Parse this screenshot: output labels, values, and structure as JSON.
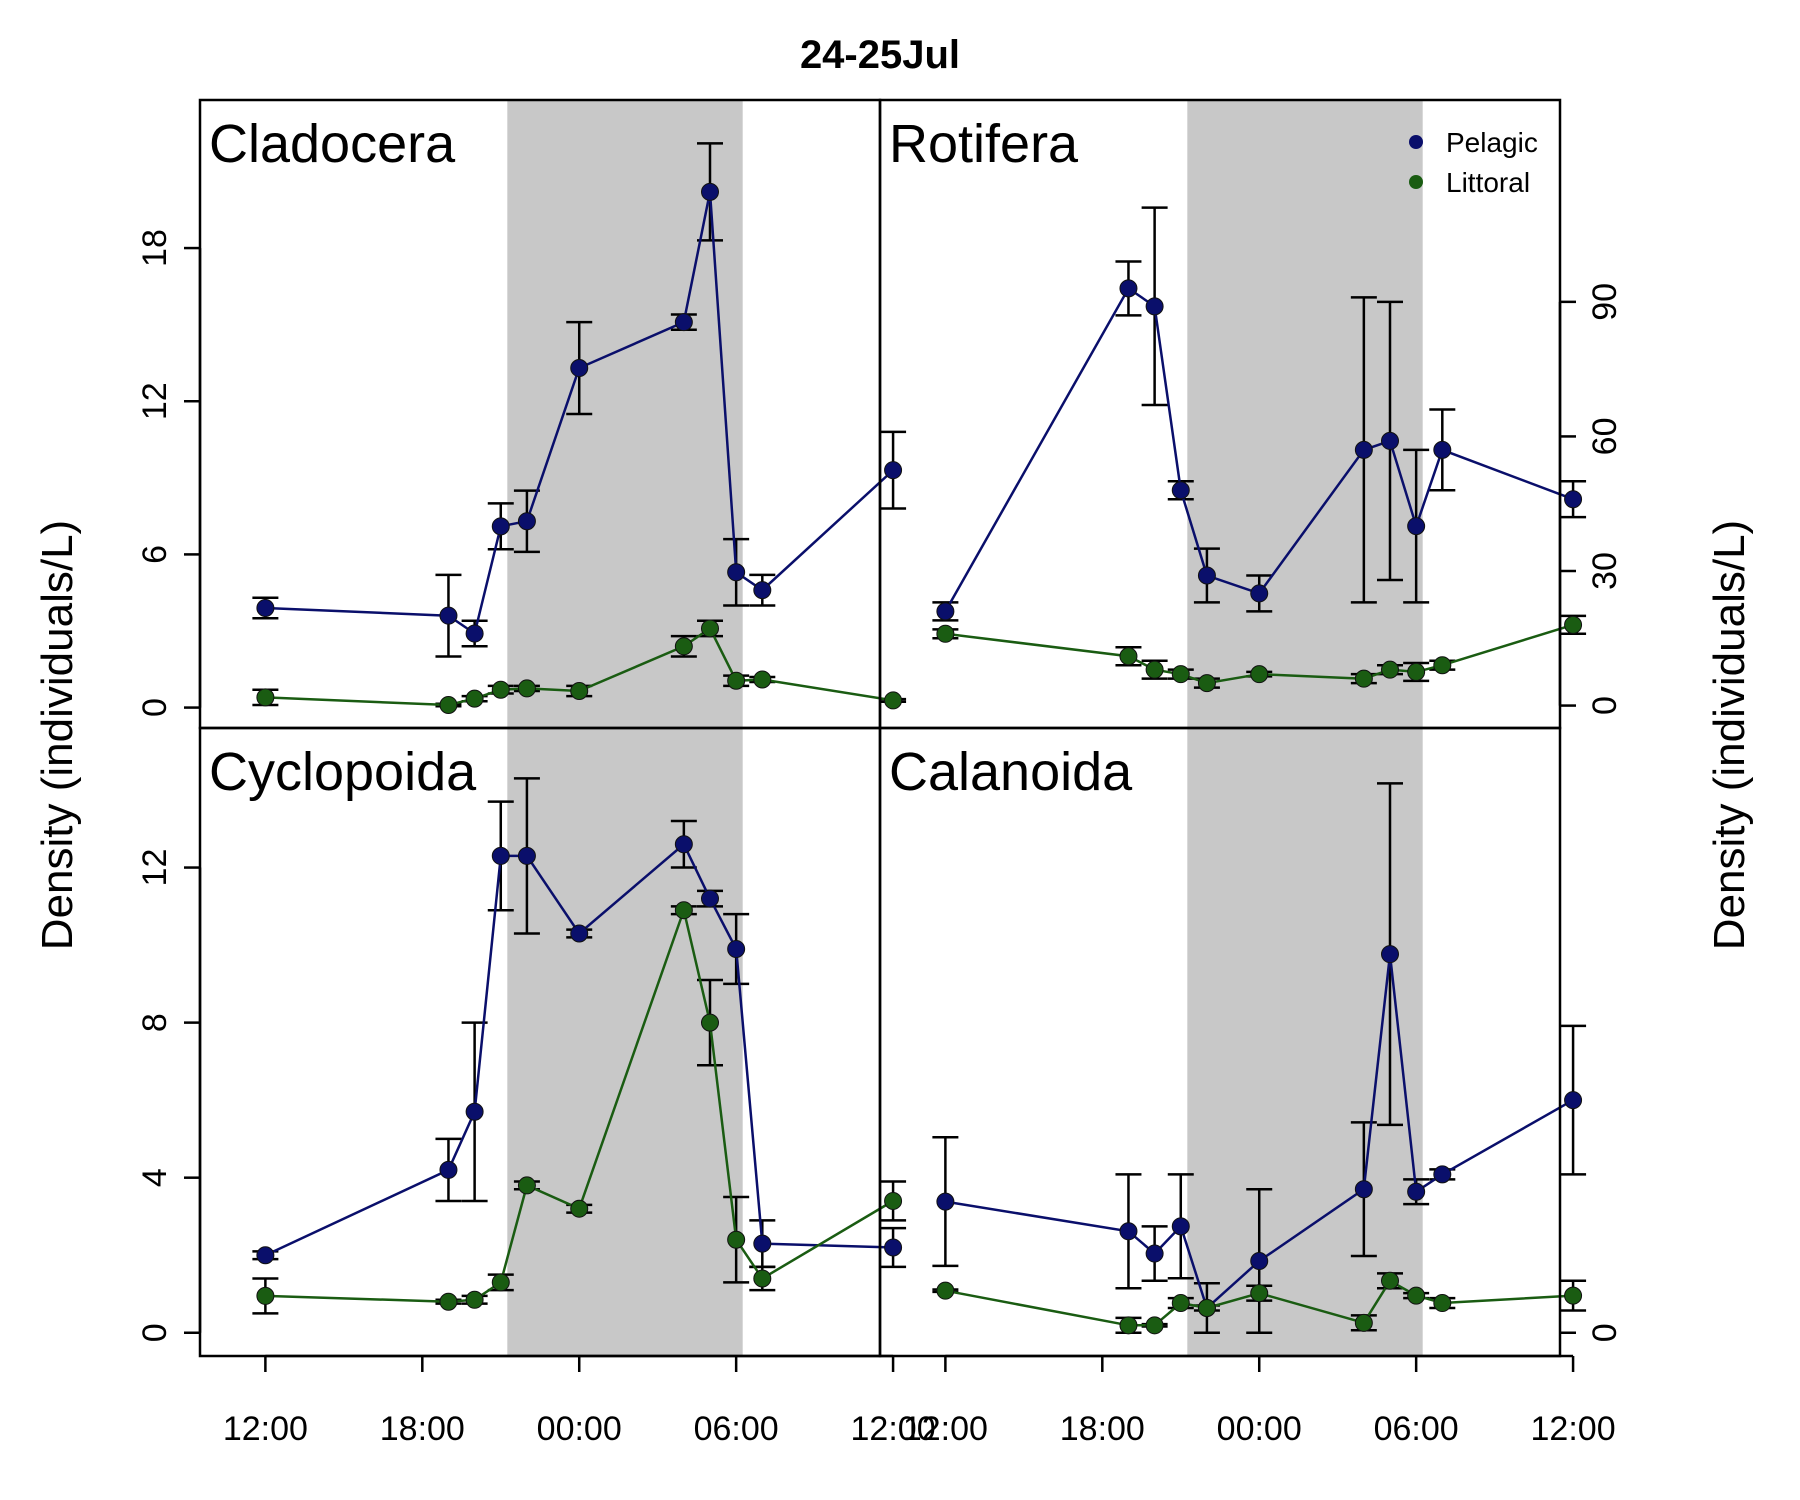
{
  "title": "24-25Jul",
  "ylabel_left": "Density (individuals/L)",
  "ylabel_right": "Density (individuals/L)",
  "x_tick_labels": [
    "12:00",
    "18:00",
    "00:00",
    "06:00",
    "12:00"
  ],
  "legend": [
    {
      "label": "Pelagic",
      "color": "#0a0f6b"
    },
    {
      "label": "Littoral",
      "color": "#1a5c12"
    }
  ],
  "night_shading": {
    "start_hour": 21.25,
    "end_hour": 30.25,
    "color": "#c8c8c8"
  },
  "chart_data": [
    {
      "type": "line",
      "panel": "top-left",
      "title": "Cladocera",
      "x_unit": "hours since 00:00 on 24 Jul",
      "xlim": [
        9.5,
        35.5
      ],
      "ylim": [
        -0.8,
        23.8
      ],
      "yticks": [
        0,
        6,
        12,
        18
      ],
      "x": [
        12,
        19,
        20,
        21,
        22,
        24,
        28,
        29,
        30,
        31,
        36
      ],
      "series": [
        {
          "name": "Pelagic",
          "color": "#0a0f6b",
          "values": [
            3.9,
            3.6,
            2.9,
            7.1,
            7.3,
            13.3,
            15.1,
            20.2,
            5.3,
            4.6,
            9.3
          ],
          "err": [
            0.4,
            1.6,
            0.5,
            0.9,
            1.2,
            1.8,
            0.3,
            1.9,
            1.3,
            0.6,
            1.5
          ]
        },
        {
          "name": "Littoral",
          "color": "#1a5c12",
          "values": [
            0.4,
            0.1,
            0.35,
            0.7,
            0.75,
            0.65,
            2.4,
            3.1,
            1.05,
            1.1,
            0.28
          ],
          "err": [
            0.3,
            0.05,
            0.1,
            0.15,
            0.1,
            0.2,
            0.4,
            0.3,
            0.2,
            0.1,
            0.05
          ]
        }
      ]
    },
    {
      "type": "line",
      "panel": "top-right",
      "title": "Rotifera",
      "x_unit": "hours since 00:00 on 24 Jul",
      "xlim": [
        9.5,
        35.5
      ],
      "ylim": [
        -5,
        135
      ],
      "yticks": [
        0,
        30,
        60,
        90
      ],
      "x": [
        12,
        19,
        20,
        21,
        22,
        24,
        28,
        29,
        30,
        31,
        36
      ],
      "series": [
        {
          "name": "Pelagic",
          "color": "#0a0f6b",
          "values": [
            21,
            93,
            89,
            48,
            29,
            25,
            57,
            59,
            40,
            57,
            46
          ],
          "err": [
            2,
            6,
            22,
            2,
            6,
            4,
            34,
            31,
            17,
            9,
            4
          ]
        },
        {
          "name": "Littoral",
          "color": "#1a5c12",
          "values": [
            16,
            11,
            8,
            7,
            5,
            7,
            6,
            8,
            7.5,
            9,
            18
          ],
          "err": [
            1,
            2,
            2,
            1,
            1,
            0.5,
            1,
            1,
            2,
            1,
            2
          ]
        }
      ]
    },
    {
      "type": "line",
      "panel": "bottom-left",
      "title": "Cyclopoida",
      "x_unit": "hours since 00:00 on 24 Jul",
      "xlim": [
        9.5,
        35.5
      ],
      "ylim": [
        -0.6,
        15.6
      ],
      "yticks": [
        0,
        4,
        8,
        12
      ],
      "x": [
        12,
        19,
        20,
        21,
        22,
        24,
        28,
        29,
        30,
        31,
        36
      ],
      "series": [
        {
          "name": "Pelagic",
          "color": "#0a0f6b",
          "values": [
            2.0,
            4.2,
            5.7,
            12.3,
            12.3,
            10.3,
            12.6,
            11.2,
            9.9,
            2.3,
            2.2
          ],
          "err": [
            0.1,
            0.8,
            2.3,
            1.4,
            2.0,
            0.1,
            0.6,
            0.2,
            0.9,
            0.6,
            0.5
          ]
        },
        {
          "name": "Littoral",
          "color": "#1a5c12",
          "values": [
            0.95,
            0.8,
            0.85,
            1.3,
            3.8,
            3.2,
            10.9,
            8.0,
            2.4,
            1.4,
            3.4
          ],
          "err": [
            0.45,
            0.05,
            0.1,
            0.2,
            0.1,
            0.1,
            0.1,
            1.1,
            1.1,
            0.3,
            0.5
          ]
        }
      ]
    },
    {
      "type": "line",
      "panel": "bottom-right",
      "title": "Calanoida",
      "x_unit": "hours since 00:00 on 24 Jul",
      "xlim": [
        9.5,
        35.5
      ],
      "ylim": [
        -0.94,
        24.44
      ],
      "yticks": [
        0
      ],
      "x": [
        12,
        19,
        20,
        21,
        22,
        24,
        28,
        29,
        30,
        31,
        36
      ],
      "series": [
        {
          "name": "Pelagic",
          "color": "#0a0f6b",
          "values": [
            5.3,
            4.1,
            3.2,
            4.3,
            1.0,
            2.9,
            5.8,
            15.3,
            5.7,
            6.4,
            9.4
          ],
          "err": [
            2.6,
            2.3,
            1.1,
            2.1,
            1.0,
            2.9,
            2.7,
            6.9,
            0.5,
            0.2,
            3.0
          ]
        },
        {
          "name": "Littoral",
          "color": "#1a5c12",
          "values": [
            1.7,
            0.3,
            0.3,
            1.2,
            1.0,
            1.6,
            0.4,
            2.1,
            1.5,
            1.2,
            1.5
          ],
          "err": [
            0.05,
            0.3,
            0.05,
            0.2,
            0.1,
            0.3,
            0.3,
            0.3,
            0.1,
            0.2,
            0.6
          ]
        }
      ]
    }
  ]
}
